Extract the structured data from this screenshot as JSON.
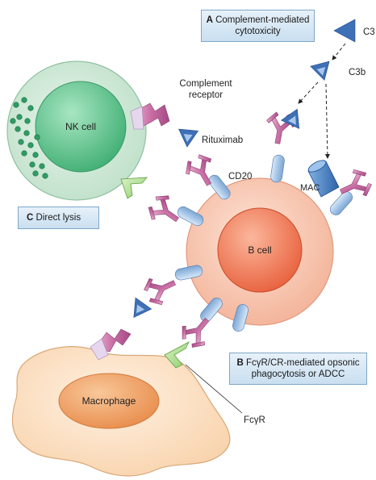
{
  "labels": {
    "complement_receptor_line1": "Complement",
    "complement_receptor_line2": "receptor",
    "c3": "C3",
    "c3b": "C3b",
    "rituximab": "Rituximab",
    "cd20": "CD20",
    "mac": "MAC",
    "fcgr": "FcγR"
  },
  "cells": {
    "nk": "NK cell",
    "b": "B cell",
    "macrophage": "Macrophage"
  },
  "boxes": {
    "a": {
      "letter": "A",
      "line1": "Complement-mediated",
      "line2": "cytotoxicity"
    },
    "b": {
      "letter": "B",
      "line1": "FcγR/CR-mediated opsonic",
      "line2": "phagocytosis or ADCC"
    },
    "c": {
      "letter": "C",
      "line1": "Direct lysis"
    }
  },
  "colors": {
    "nk_outer": "#cfe8d6",
    "nk_inner": "#5fc38a",
    "b_outer": "#f6c3ad",
    "b_inner": "#ef7f5c",
    "macrophage": "#fbe1c4",
    "nucleus": "#f0a469",
    "receptor_blue": "#a9c8ea",
    "antibody_pink": "#c66aa3",
    "c3_blue": "#3d6fb6"
  }
}
